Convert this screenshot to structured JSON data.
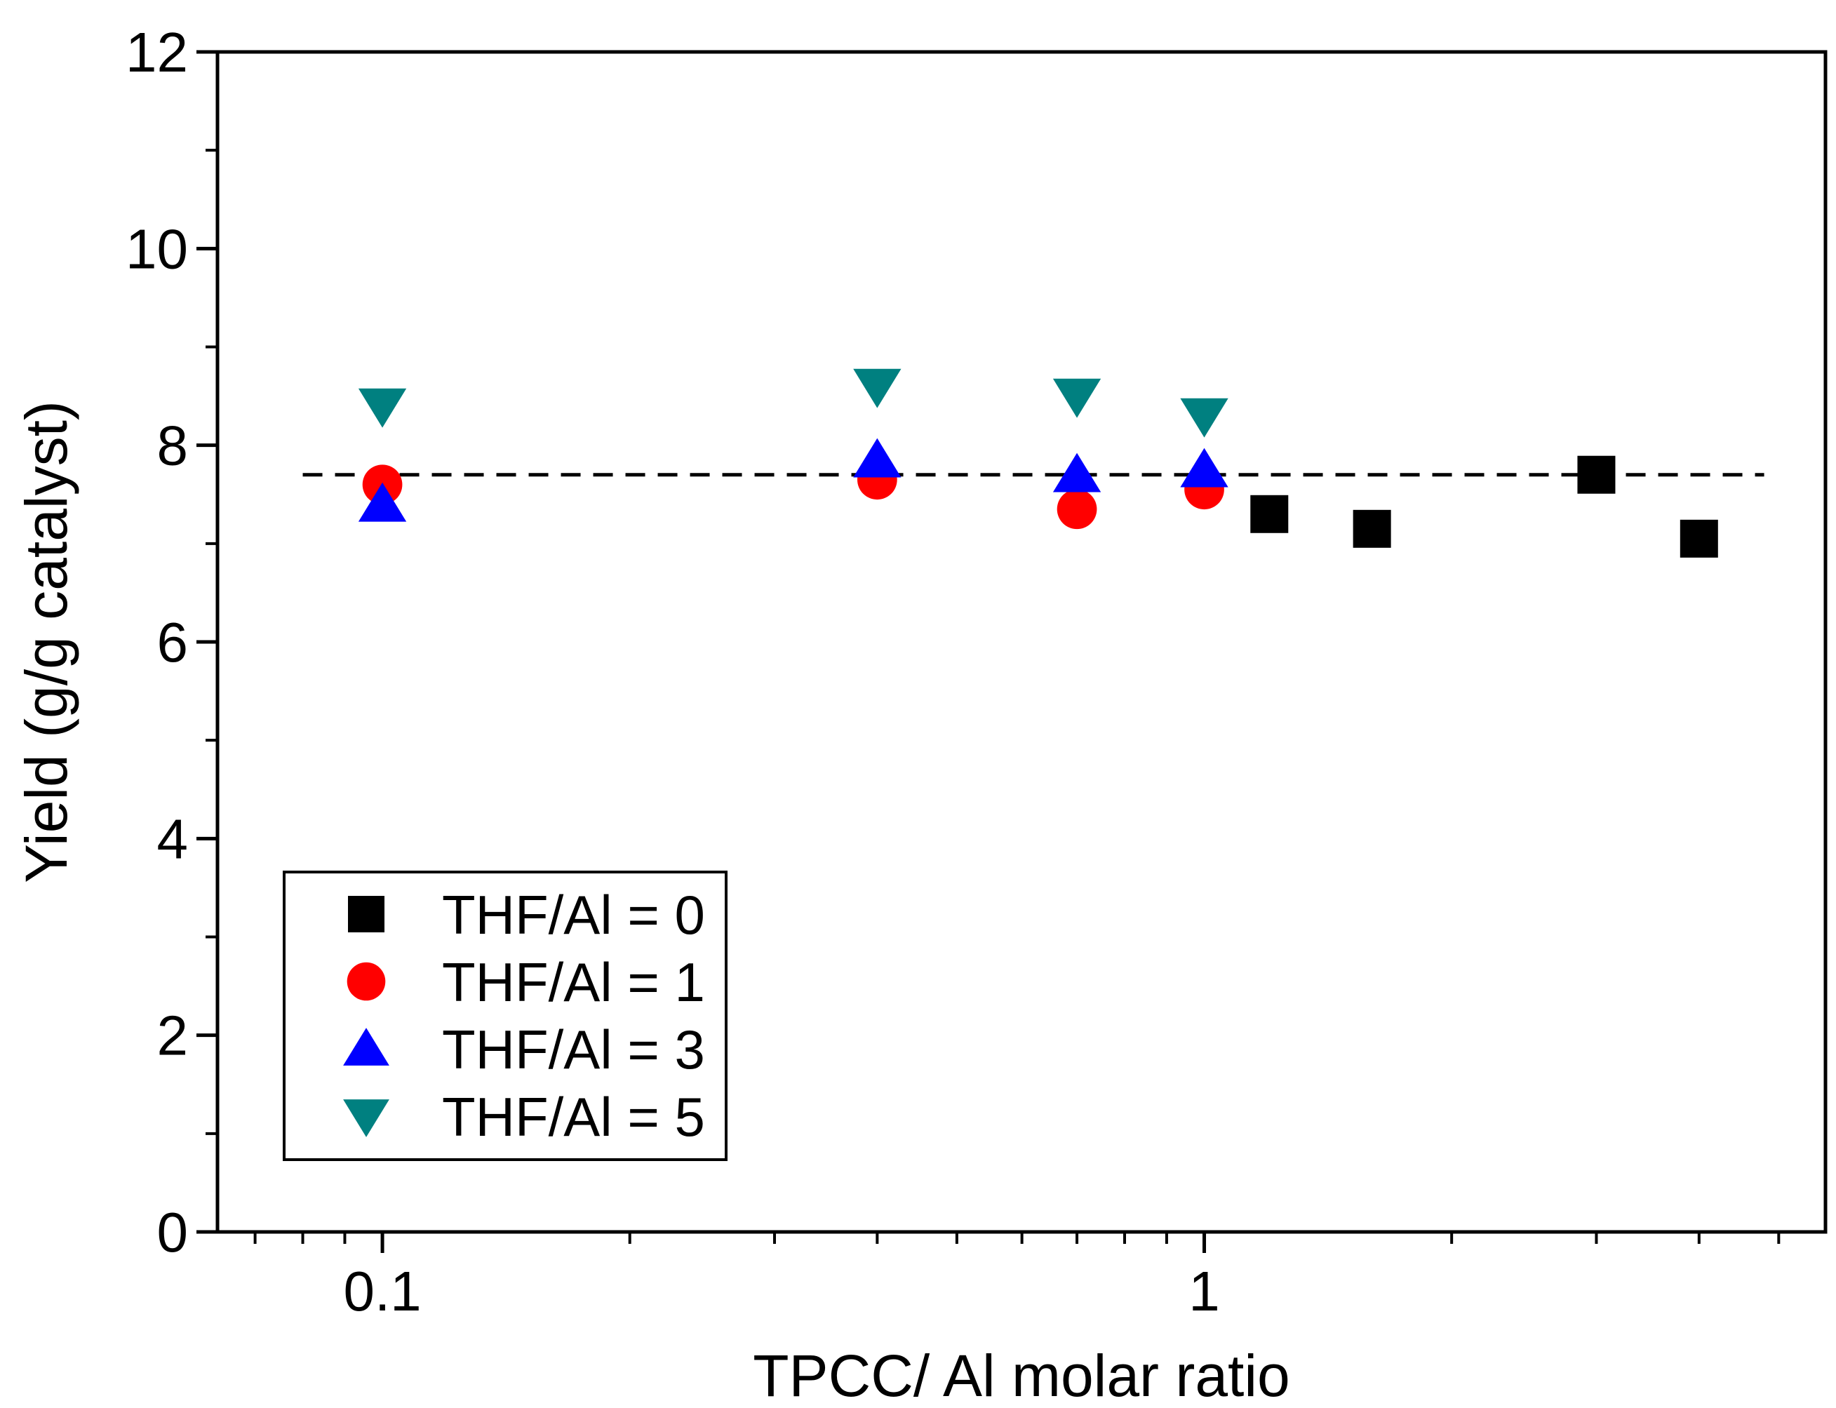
{
  "chart_data": {
    "type": "scatter",
    "title": "",
    "xlabel": "TPCC/ Al molar ratio",
    "ylabel": "Yield (g/g catalyst)",
    "xscale": "log",
    "xlim": [
      0.063,
      5.7
    ],
    "ylim": [
      0,
      12
    ],
    "x_major_ticks": [
      0.1,
      1
    ],
    "x_tick_labels": [
      "0.1",
      "1"
    ],
    "x_minor_ticks": [
      0.07,
      0.08,
      0.09,
      0.2,
      0.3,
      0.4,
      0.5,
      0.6,
      0.7,
      0.8,
      0.9,
      2,
      3,
      4,
      5
    ],
    "y_major_ticks": [
      0,
      2,
      4,
      6,
      8,
      10,
      12
    ],
    "y_tick_labels": [
      "0",
      "2",
      "4",
      "6",
      "8",
      "10",
      "12"
    ],
    "grid": false,
    "legend_position": "bottom-left",
    "reference_line": {
      "y": 7.7,
      "x_from": 0.08,
      "x_to": 4.8,
      "style": "dashed",
      "color": "#000000"
    },
    "series": [
      {
        "name": "THF/Al = 0",
        "marker": "square",
        "color": "#000000",
        "points": [
          [
            1.2,
            7.3
          ],
          [
            1.6,
            7.15
          ],
          [
            3.0,
            7.7
          ],
          [
            4.0,
            7.05
          ]
        ]
      },
      {
        "name": "THF/Al = 1",
        "marker": "circle",
        "color": "#ff0000",
        "points": [
          [
            0.1,
            7.6
          ],
          [
            0.4,
            7.65
          ],
          [
            0.7,
            7.35
          ],
          [
            1.0,
            7.55
          ]
        ]
      },
      {
        "name": "THF/Al = 3",
        "marker": "triangle-up",
        "color": "#0000ff",
        "points": [
          [
            0.1,
            7.4
          ],
          [
            0.4,
            7.85
          ],
          [
            0.7,
            7.7
          ],
          [
            1.0,
            7.75
          ]
        ]
      },
      {
        "name": "THF/Al = 5",
        "marker": "triangle-down",
        "color": "#008080",
        "points": [
          [
            0.1,
            8.4
          ],
          [
            0.4,
            8.6
          ],
          [
            0.7,
            8.5
          ],
          [
            1.0,
            8.3
          ]
        ]
      }
    ]
  }
}
